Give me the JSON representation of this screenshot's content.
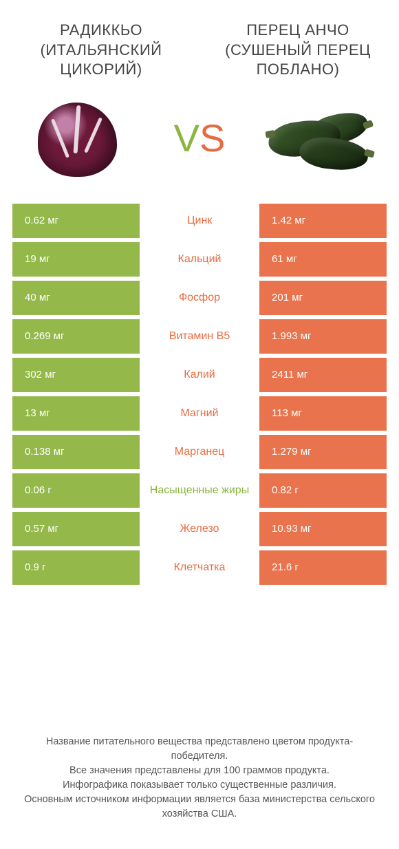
{
  "colors": {
    "green": "#94b84a",
    "orange": "#e8734c",
    "text_green": "#8bb53f",
    "text_orange": "#e86b3f"
  },
  "header": {
    "left": "РАДИККЬО (ИТАЛЬЯНСКИЙ ЦИКОРИЙ)",
    "right": "ПЕРЕЦ АНЧО (СУШЕНЫЙ ПЕРЕЦ ПОБЛАНО)",
    "vs_v": "V",
    "vs_s": "S"
  },
  "rows": [
    {
      "left": "0.62 мг",
      "name": "Цинк",
      "right": "1.42 мг",
      "winner": "right"
    },
    {
      "left": "19 мг",
      "name": "Кальций",
      "right": "61 мг",
      "winner": "right"
    },
    {
      "left": "40 мг",
      "name": "Фосфор",
      "right": "201 мг",
      "winner": "right"
    },
    {
      "left": "0.269 мг",
      "name": "Витамин B5",
      "right": "1.993 мг",
      "winner": "right"
    },
    {
      "left": "302 мг",
      "name": "Калий",
      "right": "2411 мг",
      "winner": "right"
    },
    {
      "left": "13 мг",
      "name": "Магний",
      "right": "113 мг",
      "winner": "right"
    },
    {
      "left": "0.138 мг",
      "name": "Марганец",
      "right": "1.279 мг",
      "winner": "right"
    },
    {
      "left": "0.06 г",
      "name": "Насыщенные жиры",
      "right": "0.82 г",
      "winner": "left"
    },
    {
      "left": "0.57 мг",
      "name": "Железо",
      "right": "10.93 мг",
      "winner": "right"
    },
    {
      "left": "0.9 г",
      "name": "Клетчатка",
      "right": "21.6 г",
      "winner": "right"
    }
  ],
  "footer": {
    "l1": "Название питательного вещества представлено цветом продукта-победителя.",
    "l2": "Все значения представлены для 100 граммов продукта.",
    "l3": "Инфографика показывает только существенные различия.",
    "l4": "Основным источником информации является база министерства сельского хозяйства США."
  }
}
